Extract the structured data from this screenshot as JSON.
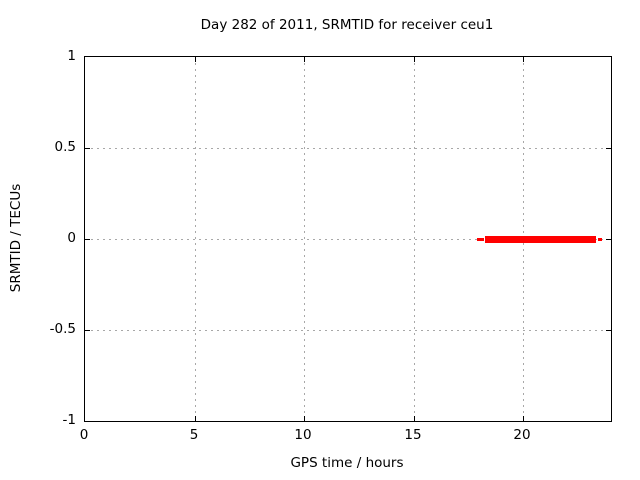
{
  "page": {
    "background_color": "#ffffff"
  },
  "chart_data": {
    "type": "line",
    "title": "Day 282 of 2011, SRMTID for receiver ceu1",
    "xlabel": "GPS time / hours",
    "ylabel": "SRMTID / TECUs",
    "xlim": [
      0,
      24
    ],
    "ylim": [
      -1,
      1
    ],
    "xticks": [
      0,
      5,
      10,
      15,
      20
    ],
    "xtick_labels": [
      "0",
      "5",
      "10",
      "15",
      "20"
    ],
    "yticks": [
      -1,
      -0.5,
      0,
      0.5,
      1
    ],
    "ytick_labels": [
      "-1",
      "-0.5",
      "0",
      "0.5",
      "1"
    ],
    "grid": true,
    "legend": "none",
    "colors": {
      "axis": "#000000",
      "grid": "#a8a8a8",
      "text": "#000000",
      "series": "#ff0000"
    },
    "series": [
      {
        "name": "SRMTID",
        "color": "#ff0000",
        "y": 0,
        "x_start": 17.9,
        "x_end": 23.55,
        "segments": [
          {
            "x0": 17.9,
            "x1": 18.2,
            "y": 0,
            "weight": "thin"
          },
          {
            "x0": 18.25,
            "x1": 23.3,
            "y": 0,
            "weight": "thick"
          },
          {
            "x0": 23.4,
            "x1": 23.6,
            "y": 0,
            "weight": "thin"
          }
        ]
      }
    ]
  }
}
